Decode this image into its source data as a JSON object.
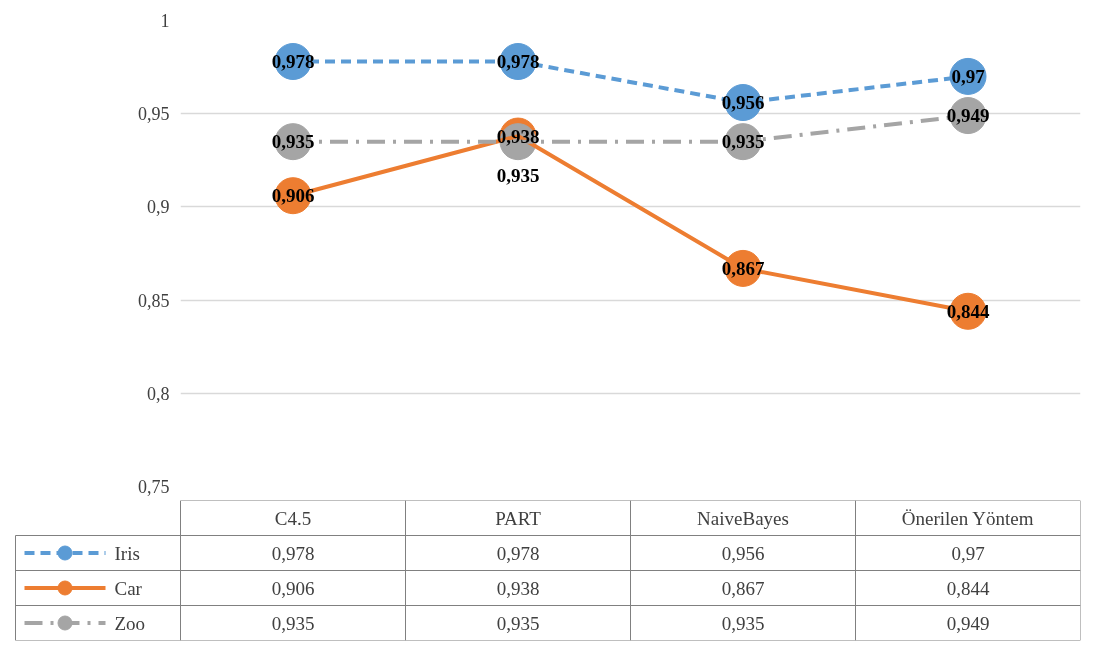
{
  "chart_data": {
    "type": "line",
    "categories": [
      "C4.5",
      "PART",
      "NaiveBayes",
      "Önerilen Yöntem"
    ],
    "series": [
      {
        "name": "Iris",
        "color": "#5b9bd5",
        "line_style": "dashed",
        "values": [
          0.978,
          0.978,
          0.956,
          0.97
        ],
        "value_labels": [
          "0,978",
          "0,978",
          "0,956",
          "0,97"
        ]
      },
      {
        "name": "Car",
        "color": "#ed7d31",
        "line_style": "solid",
        "values": [
          0.906,
          0.938,
          0.867,
          0.844
        ],
        "value_labels": [
          "0,906",
          "0,938",
          "0,867",
          "0,844"
        ]
      },
      {
        "name": "Zoo",
        "color": "#a5a5a5",
        "line_style": "dashdot",
        "values": [
          0.935,
          0.935,
          0.935,
          0.949
        ],
        "value_labels": [
          "0,935",
          "0,935",
          "0,935",
          "0,949"
        ]
      }
    ],
    "ylim": [
      0.75,
      1
    ],
    "yticks": [
      {
        "value": 0.75,
        "label": "0,75"
      },
      {
        "value": 0.8,
        "label": "0,8"
      },
      {
        "value": 0.85,
        "label": "0,85"
      },
      {
        "value": 0.9,
        "label": "0,9"
      },
      {
        "value": 0.95,
        "label": "0,95"
      },
      {
        "value": 1,
        "label": "1"
      }
    ],
    "grid": "y",
    "legend": "bottom",
    "marker": "circle"
  }
}
